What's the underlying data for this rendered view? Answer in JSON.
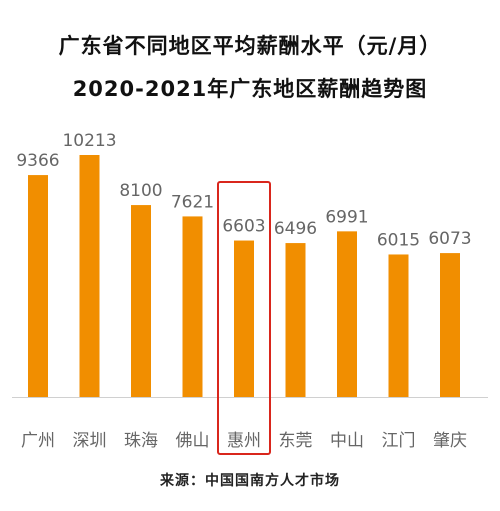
{
  "title": "广东省不同地区平均薪酬水平（元/月）",
  "subtitle": "2020-2021年广东地区薪酬趋势图",
  "source": "来源：中国国南方人才市场",
  "colors": {
    "bar": "#f18e00",
    "highlight": "#d9261c",
    "axis": "#d0d0d0"
  },
  "chart_data": {
    "type": "bar",
    "title": "广东省不同地区平均薪酬水平（元/月）",
    "subtitle": "2020-2021年广东地区薪酬趋势图",
    "categories": [
      "广州",
      "深圳",
      "珠海",
      "佛山",
      "惠州",
      "东莞",
      "中山",
      "江门",
      "肇庆"
    ],
    "values": [
      9366,
      10213,
      8100,
      7621,
      6603,
      6496,
      6991,
      6015,
      6073
    ],
    "highlighted_category": "惠州",
    "ylim": [
      0,
      10213
    ],
    "grid": false,
    "legend": "none"
  }
}
